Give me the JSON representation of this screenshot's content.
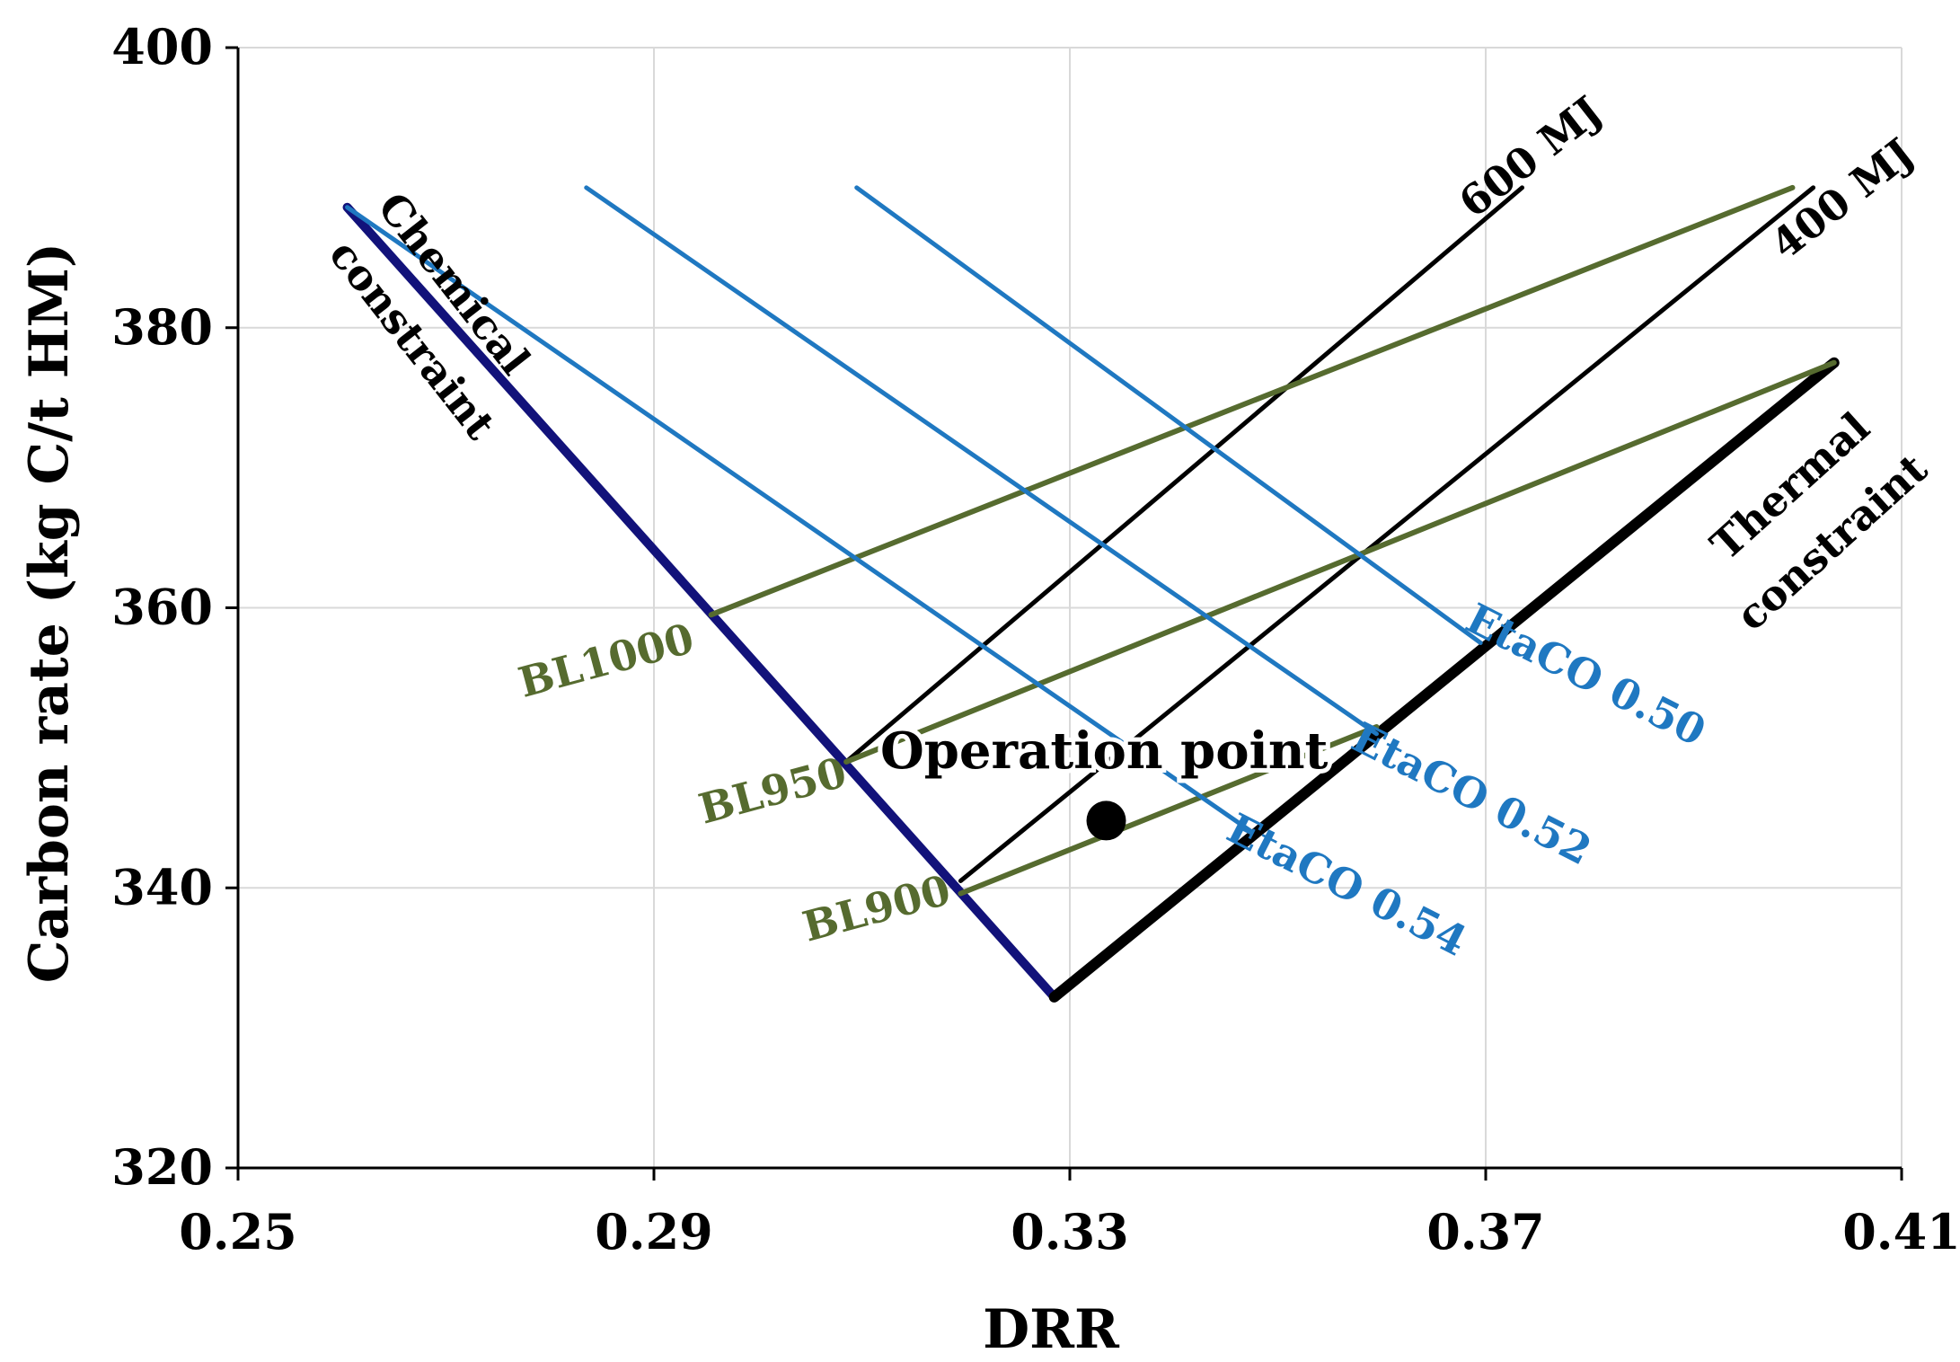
{
  "chart_data": {
    "type": "line",
    "title": "",
    "xlabel": "DRR",
    "ylabel": "Carbon rate (kg C/t HM)",
    "xlim": [
      0.25,
      0.41
    ],
    "ylim": [
      320,
      400
    ],
    "xticks": [
      0.25,
      0.29,
      0.33,
      0.37,
      0.41
    ],
    "xtick_labels": [
      "0.25",
      "0.29",
      "0.33",
      "0.37",
      "0.41"
    ],
    "yticks": [
      320,
      340,
      360,
      380,
      400
    ],
    "ytick_labels": [
      "320",
      "340",
      "360",
      "380",
      "400"
    ],
    "grid": true,
    "colors": {
      "chemical": "#12127a",
      "thermal": "#000000",
      "energy": "#000000",
      "blast": "#566b2f",
      "etaco": "#1f78c1",
      "gridline": "#d9d9d9"
    },
    "series": [
      {
        "name": "Chemical constraint",
        "x": [
          0.2605,
          0.3285
        ],
        "y": [
          388.6,
          332.2
        ],
        "group": "chemical"
      },
      {
        "name": "Thermal constraint",
        "x": [
          0.3285,
          0.4035
        ],
        "y": [
          332.2,
          377.5
        ],
        "group": "thermal"
      },
      {
        "name": "600 MJ",
        "x": [
          0.3085,
          0.3735
        ],
        "y": [
          349.0,
          390.0
        ],
        "group": "energy"
      },
      {
        "name": "400 MJ",
        "x": [
          0.3195,
          0.4015
        ],
        "y": [
          340.5,
          390.0
        ],
        "group": "energy"
      },
      {
        "name": "BL1000",
        "x": [
          0.2955,
          0.3995
        ],
        "y": [
          359.5,
          390.0
        ],
        "group": "blast"
      },
      {
        "name": "BL950",
        "x": [
          0.3085,
          0.4035
        ],
        "y": [
          349.0,
          377.5
        ],
        "group": "blast"
      },
      {
        "name": "BL900",
        "x": [
          0.3195,
          0.3595
        ],
        "y": [
          339.6,
          351.5
        ],
        "group": "blast"
      },
      {
        "name": "EtaCO 0.54",
        "x": [
          0.2605,
          0.3475
        ],
        "y": [
          388.6,
          344.0
        ],
        "group": "etaco"
      },
      {
        "name": "EtaCO 0.52",
        "x": [
          0.2835,
          0.3595
        ],
        "y": [
          390.0,
          351.0
        ],
        "group": "etaco"
      },
      {
        "name": "EtaCO 0.50",
        "x": [
          0.3095,
          0.3695
        ],
        "y": [
          390.0,
          357.5
        ],
        "group": "etaco"
      }
    ],
    "points": [
      {
        "name": "Operation point",
        "x": 0.3335,
        "y": 344.8
      }
    ],
    "annotations": [
      {
        "text": "Chemical",
        "x": 0.2705,
        "y": 383.0,
        "rotation": 52,
        "color": "#000000"
      },
      {
        "text": "constraint",
        "x": 0.2665,
        "y": 379.0,
        "rotation": 52,
        "color": "#000000"
      },
      {
        "text": "Thermal",
        "x": 0.3995,
        "y": 368.5,
        "rotation": -42,
        "color": "#000000"
      },
      {
        "text": "constraint",
        "x": 0.4035,
        "y": 364.5,
        "rotation": -42,
        "color": "#000000"
      },
      {
        "text": "600 MJ",
        "x": 0.3745,
        "y": 392.0,
        "rotation": -38,
        "color": "#000000"
      },
      {
        "text": "400 MJ",
        "x": 0.4045,
        "y": 389.0,
        "rotation": -38,
        "color": "#000000"
      },
      {
        "text": "BL1000",
        "x": 0.2855,
        "y": 356.0,
        "rotation": -15,
        "color": "#566b2f"
      },
      {
        "text": "BL950",
        "x": 0.3015,
        "y": 346.7,
        "rotation": -15,
        "color": "#566b2f"
      },
      {
        "text": "BL900",
        "x": 0.3115,
        "y": 338.3,
        "rotation": -15,
        "color": "#566b2f"
      },
      {
        "text": "EtaCO 0.50",
        "x": 0.3795,
        "y": 355.0,
        "rotation": 27,
        "color": "#1f78c1"
      },
      {
        "text": "EtaCO 0.52",
        "x": 0.3685,
        "y": 346.5,
        "rotation": 27,
        "color": "#1f78c1"
      },
      {
        "text": "EtaCO 0.54",
        "x": 0.3565,
        "y": 340.0,
        "rotation": 27,
        "color": "#1f78c1"
      },
      {
        "text": "Operation point",
        "x": 0.3333,
        "y": 349.5,
        "rotation": 0,
        "color": "#000000"
      }
    ]
  }
}
